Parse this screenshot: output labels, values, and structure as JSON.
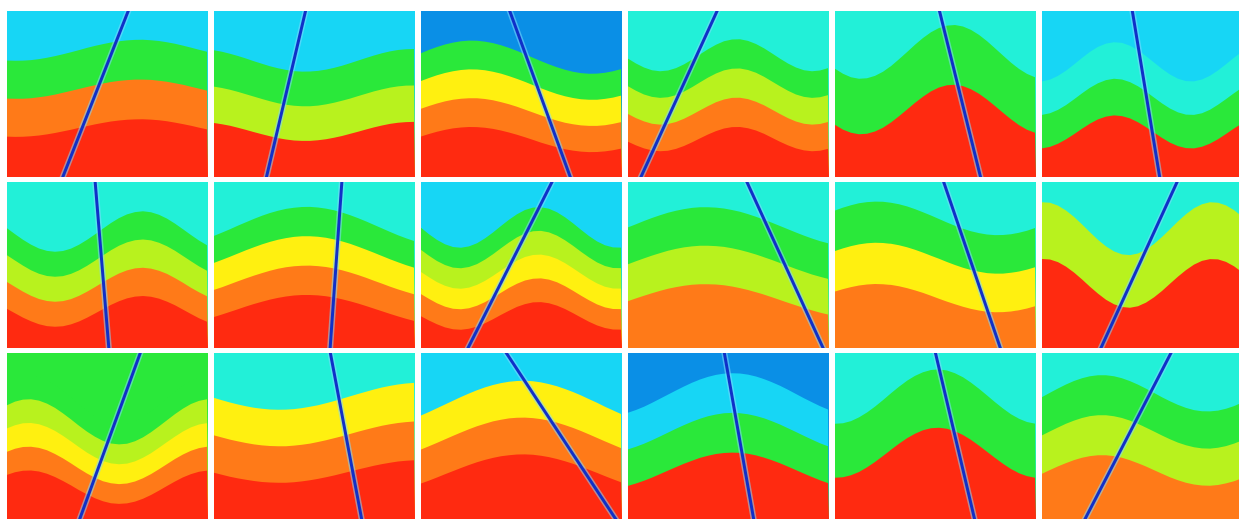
{
  "palette": {
    "deep_blue": "#0a8fe6",
    "cyan": "#17d6f5",
    "aqua": "#22f0d8",
    "green": "#2ae83a",
    "lime": "#b8f21e",
    "yellow": "#fff010",
    "orange": "#ff7a18",
    "red": "#ff2a10",
    "fault": "#1030c8"
  },
  "panels": [
    {
      "top": "cyan",
      "layers": [
        "green",
        "orange",
        "red"
      ],
      "fault_dir": "rising"
    },
    {
      "top": "cyan",
      "layers": [
        "green",
        "lime",
        "red"
      ],
      "fault_dir": "rising"
    },
    {
      "top": "deep_blue",
      "layers": [
        "green",
        "yellow",
        "orange",
        "red"
      ],
      "fault_dir": "falling"
    },
    {
      "top": "aqua",
      "layers": [
        "green",
        "lime",
        "orange",
        "red"
      ],
      "fault_dir": "rising"
    },
    {
      "top": "aqua",
      "layers": [
        "green",
        "red"
      ],
      "fault_dir": "falling"
    },
    {
      "top": "cyan",
      "layers": [
        "aqua",
        "green",
        "red"
      ],
      "fault_dir": "falling"
    },
    {
      "top": "aqua",
      "layers": [
        "green",
        "lime",
        "orange",
        "red"
      ],
      "fault_dir": "falling"
    },
    {
      "top": "aqua",
      "layers": [
        "green",
        "yellow",
        "orange",
        "red"
      ],
      "fault_dir": "rising"
    },
    {
      "top": "cyan",
      "layers": [
        "green",
        "lime",
        "yellow",
        "orange",
        "red"
      ],
      "fault_dir": "rising"
    },
    {
      "top": "aqua",
      "layers": [
        "green",
        "lime",
        "orange"
      ],
      "fault_dir": "falling"
    },
    {
      "top": "aqua",
      "layers": [
        "green",
        "yellow",
        "orange"
      ],
      "fault_dir": "falling"
    },
    {
      "top": "aqua",
      "layers": [
        "lime",
        "red"
      ],
      "fault_dir": "rising"
    },
    {
      "top": "green",
      "layers": [
        "green",
        "lime",
        "yellow",
        "orange",
        "red"
      ],
      "fault_dir": "rising"
    },
    {
      "top": "aqua",
      "layers": [
        "yellow",
        "orange",
        "red"
      ],
      "fault_dir": "falling"
    },
    {
      "top": "cyan",
      "layers": [
        "yellow",
        "orange",
        "red"
      ],
      "fault_dir": "falling"
    },
    {
      "top": "deep_blue",
      "layers": [
        "cyan",
        "green",
        "red"
      ],
      "fault_dir": "falling"
    },
    {
      "top": "aqua",
      "layers": [
        "green",
        "red"
      ],
      "fault_dir": "falling"
    },
    {
      "top": "aqua",
      "layers": [
        "green",
        "lime",
        "orange"
      ],
      "fault_dir": "rising"
    }
  ]
}
